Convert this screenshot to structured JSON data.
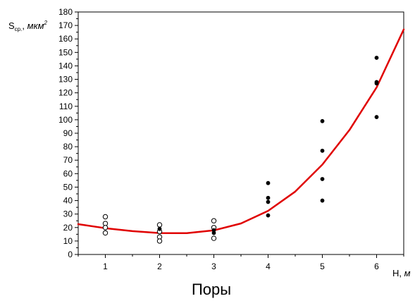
{
  "caption": "Поры",
  "chart_data": {
    "type": "scatter",
    "xlabel": {
      "main": "H, ",
      "unit": "м"
    },
    "ylabel": {
      "main": "S",
      "sub": "ср.",
      "sep": ", ",
      "unit": "мкм",
      "sup": "2"
    },
    "xlim": [
      0.5,
      6.5
    ],
    "ylim": [
      0,
      180
    ],
    "xticks": [
      1,
      2,
      3,
      4,
      5,
      6
    ],
    "yticks": [
      0,
      10,
      20,
      30,
      40,
      50,
      60,
      70,
      80,
      90,
      100,
      110,
      120,
      130,
      140,
      150,
      160,
      170,
      180
    ],
    "grid": false,
    "legend": "none",
    "series": [
      {
        "marker": "open-circle",
        "color": "#000000",
        "points": [
          [
            1,
            28
          ],
          [
            1,
            23
          ],
          [
            1,
            20
          ],
          [
            1,
            16
          ],
          [
            2,
            22
          ],
          [
            2,
            17
          ],
          [
            2,
            13
          ],
          [
            2,
            10
          ],
          [
            3,
            25
          ],
          [
            3,
            20
          ],
          [
            3,
            12
          ]
        ]
      },
      {
        "marker": "filled-circle",
        "color": "#000000",
        "points": [
          [
            2,
            19
          ],
          [
            3,
            18
          ],
          [
            3,
            16
          ],
          [
            4,
            53
          ],
          [
            4,
            42
          ],
          [
            4,
            39
          ],
          [
            4,
            29
          ],
          [
            5,
            99
          ],
          [
            5,
            77
          ],
          [
            5,
            56
          ],
          [
            5,
            40
          ],
          [
            6,
            146
          ],
          [
            6,
            128
          ],
          [
            6,
            127
          ],
          [
            6,
            102
          ]
        ]
      },
      {
        "marker": "line",
        "color": "#e00000",
        "points": [
          [
            0.5,
            22.5
          ],
          [
            1,
            19.5
          ],
          [
            1.5,
            17.3
          ],
          [
            2,
            15.9
          ],
          [
            2.5,
            15.8
          ],
          [
            3,
            17.9
          ],
          [
            3.5,
            23.0
          ],
          [
            4,
            32.4
          ],
          [
            4.5,
            46.7
          ],
          [
            5,
            66.7
          ],
          [
            5.5,
            92.4
          ],
          [
            6,
            124
          ],
          [
            6.5,
            167
          ]
        ]
      }
    ]
  }
}
